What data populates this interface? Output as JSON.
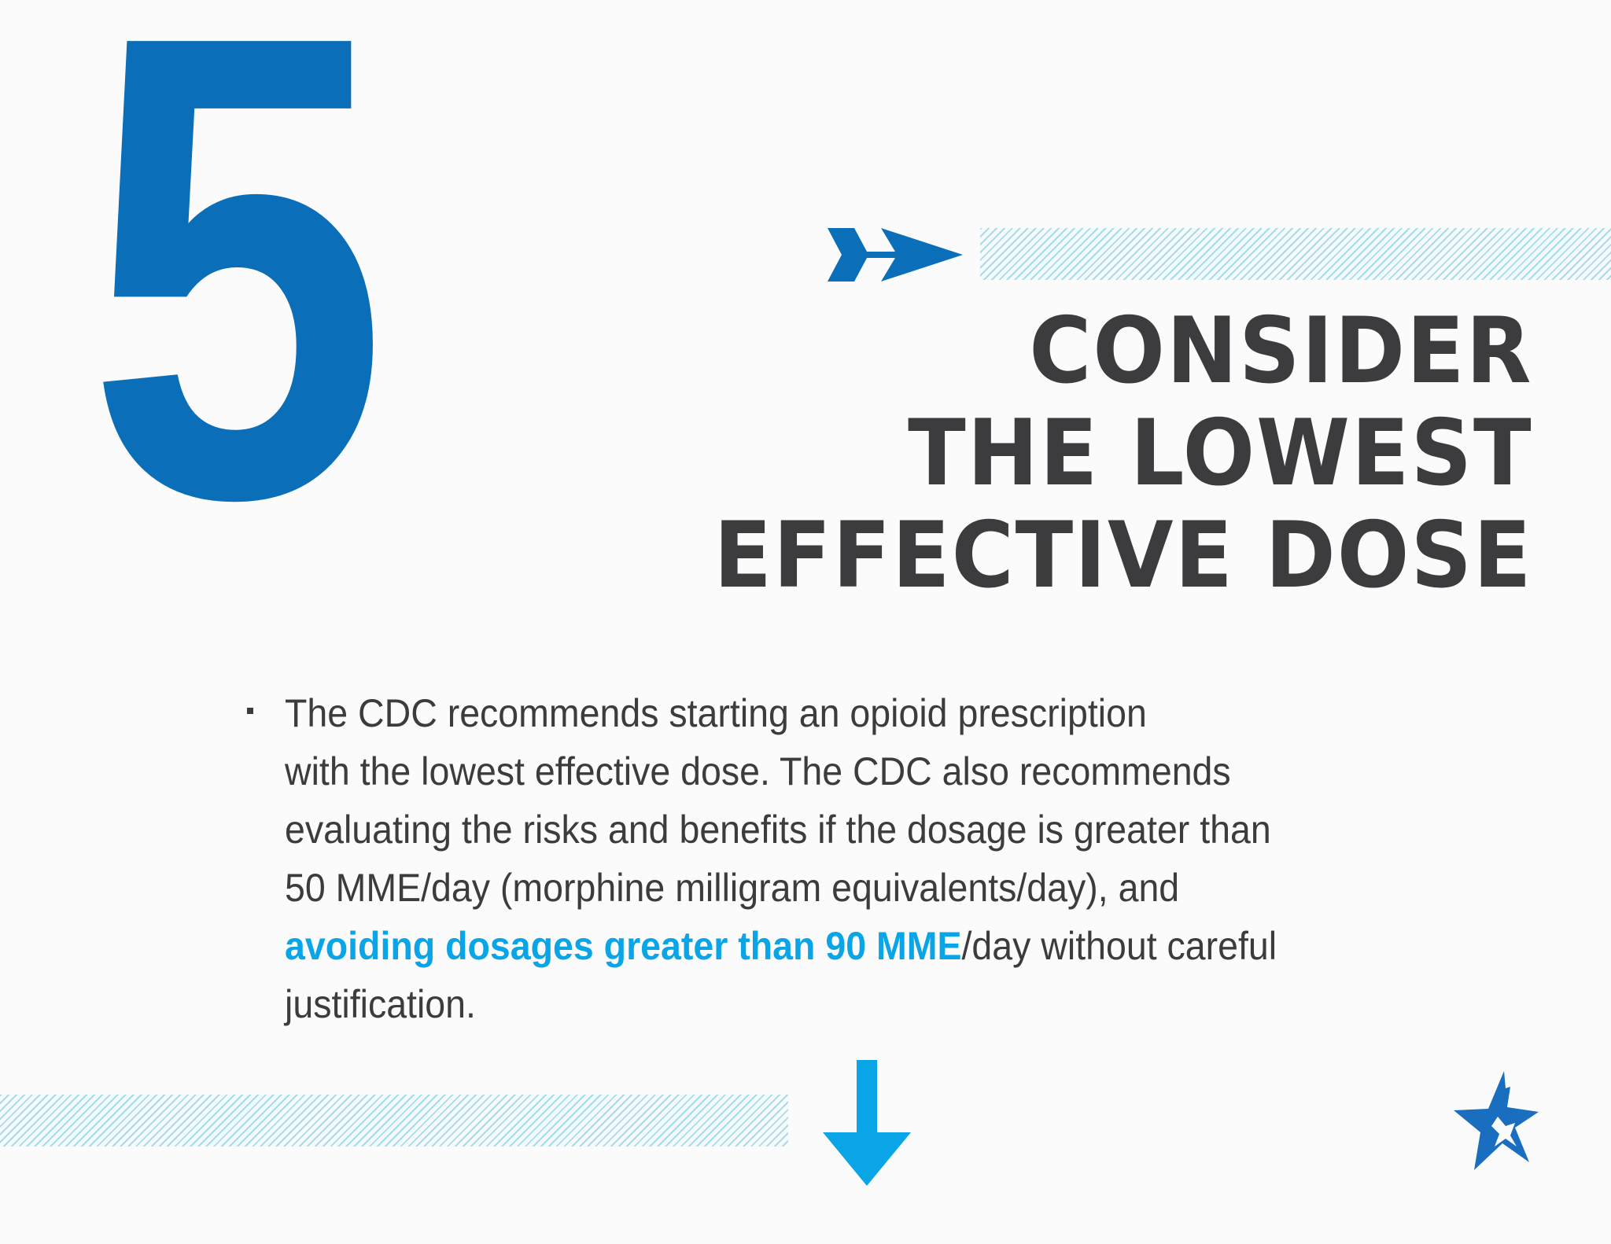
{
  "colors": {
    "brand_blue": "#0a6eb8",
    "accent_cyan": "#0aa5e6",
    "text_dark": "#3c3c3e",
    "hatch": "#a9dcea",
    "background": "#fbfbfb"
  },
  "step_number": "5",
  "headline": {
    "line1": "CONSIDER",
    "line2": "THE LOWEST",
    "line3": "EFFECTIVE DOSE"
  },
  "body": {
    "line1": "The CDC recommends starting an opioid prescription",
    "line2": "with the lowest effective dose. The CDC also recommends",
    "line3": "evaluating the risks and benefits if the dosage is greater than",
    "line4": "50 MME/day (morphine milligram equivalents/day), and",
    "line5_highlight": "avoiding dosages greater than 90 MME",
    "line5_rest": "/day without careful",
    "line6": "justification."
  },
  "icons": {
    "arrow_right": "arrow-right-icon",
    "arrow_down": "arrow-down-icon",
    "logo": "star-logo-icon"
  }
}
